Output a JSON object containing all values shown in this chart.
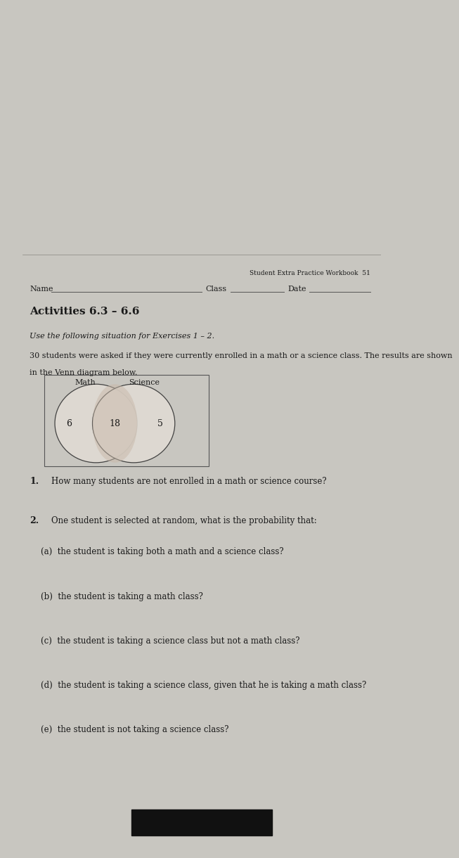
{
  "header_right": "Student Extra Practice Workbook  51",
  "name_label": "Name",
  "class_label": "Class",
  "date_label": "Date",
  "title": "Activities 6.3 – 6.6",
  "instruction": "Use the following situation for Exercises 1 – 2.",
  "description_1": "30 students were asked if they were currently enrolled in a math or a science class. The results are shown",
  "description_2": "in the Venn diagram below.",
  "venn_left_label": "Math",
  "venn_right_label": "Science",
  "venn_left_only": "6",
  "venn_overlap": "18",
  "venn_right_only": "5",
  "q1_number": "1.",
  "q1_text": "How many students are not enrolled in a math or science course?",
  "q2_number": "2.",
  "q2_text": "One student is selected at random, what is the probability that:",
  "q2a": "(a)  the student is taking both a math and a science class?",
  "q2b": "(b)  the student is taking a math class?",
  "q2c": "(c)  the student is taking a science class but not a math class?",
  "q2d": "(d)  the student is taking a science class, given that he is taking a math class?",
  "q2e": "(e)  the student is not taking a science class?",
  "outer_bg": "#c8c6c0",
  "page_bg": "#e8e5de",
  "top_bg": "#d8d6d0",
  "text_color": "#1a1a1a",
  "line_color": "#555555",
  "venn_circle_color": "#888888",
  "venn_overlap_fill": "#c0a898",
  "venn_left_fill": "#d0c8c0",
  "venn_right_fill": "#d0c8c0"
}
